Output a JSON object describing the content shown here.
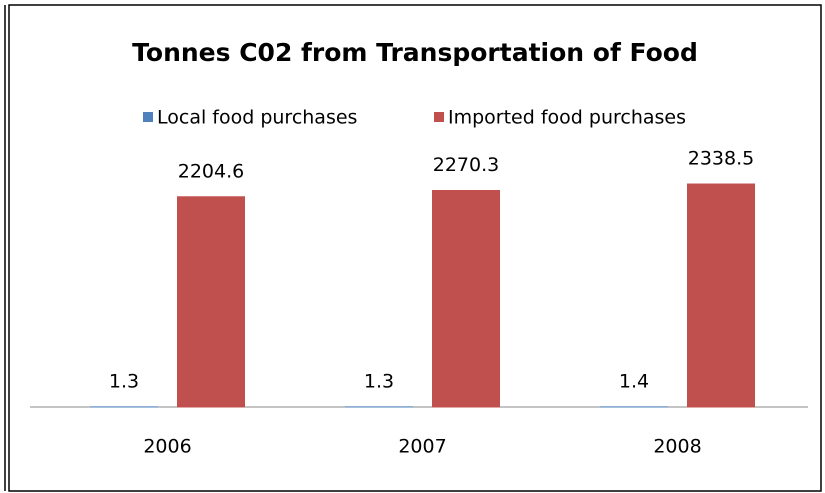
{
  "chart_data": {
    "type": "bar",
    "title": "Tonnes C02 from Transportation of Food",
    "categories": [
      "2006",
      "2007",
      "2008"
    ],
    "series": [
      {
        "name": "Local food purchases",
        "color": "#4f81bd",
        "values": [
          1.3,
          1.3,
          1.4
        ]
      },
      {
        "name": "Imported food purchases",
        "color": "#c0504d",
        "values": [
          2204.6,
          2270.3,
          2338.5
        ]
      }
    ],
    "legend": "top"
  }
}
